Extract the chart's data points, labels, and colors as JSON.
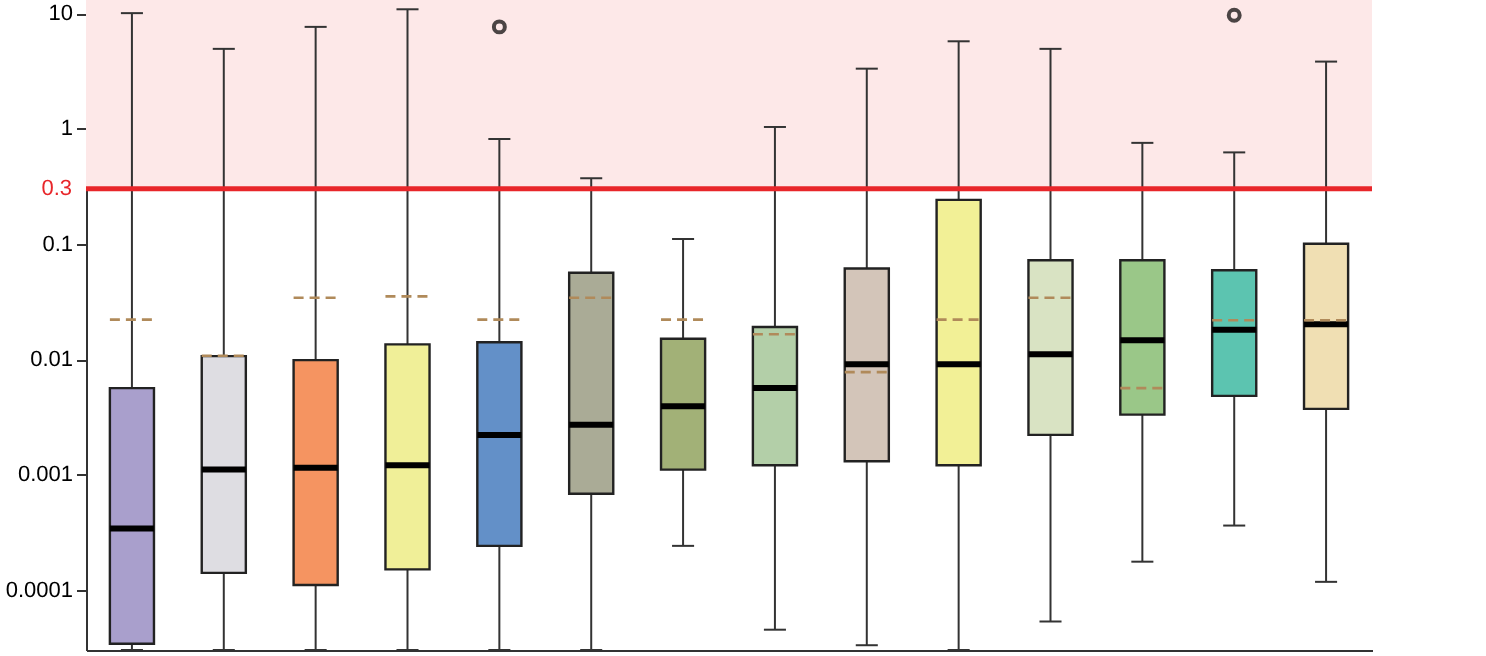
{
  "chart_data": {
    "type": "box",
    "categories": [
      null,
      null,
      null,
      null,
      null,
      null,
      null,
      null,
      null,
      null,
      null,
      null,
      null,
      null
    ],
    "colors": [
      "#a99fcc",
      "#dedde2",
      "#f59461",
      "#f0ef98",
      "#6390c8",
      "#aaab96",
      "#a2b177",
      "#b3cfa8",
      "#d3c5b9",
      "#f2f096",
      "#d9e3c3",
      "#9ac788",
      "#5cc4b0",
      "#f0dfb3"
    ],
    "boxes": [
      {
        "low": 3e-05,
        "q1": 3.4e-05,
        "median": 0.00034,
        "q3": 0.0056,
        "high": 10,
        "mean": 0.022
      },
      {
        "low": 3e-05,
        "q1": 0.00014,
        "median": 0.0011,
        "q3": 0.0106,
        "high": 4.9,
        "mean": 0.0107
      },
      {
        "low": 3e-05,
        "q1": 0.00011,
        "median": 0.00114,
        "q3": 0.0098,
        "high": 7.6,
        "mean": 0.034
      },
      {
        "low": 3e-05,
        "q1": 0.00015,
        "median": 0.0012,
        "q3": 0.0134,
        "high": 10.8,
        "mean": 0.035
      },
      {
        "low": 3e-05,
        "q1": 0.00024,
        "median": 0.0022,
        "q3": 0.014,
        "high": 0.81,
        "mean": 0.022,
        "outliers": [
          7.6
        ]
      },
      {
        "low": 3e-05,
        "q1": 0.00068,
        "median": 0.0027,
        "q3": 0.056,
        "high": 0.37,
        "mean": 0.034
      },
      {
        "low": 0.00024,
        "q1": 0.0011,
        "median": 0.0039,
        "q3": 0.015,
        "high": 0.11,
        "mean": 0.022
      },
      {
        "low": 4.5e-05,
        "q1": 0.0012,
        "median": 0.0056,
        "q3": 0.019,
        "high": 1.03,
        "mean": 0.0164
      },
      {
        "low": 3.3e-05,
        "q1": 0.0013,
        "median": 0.009,
        "q3": 0.061,
        "high": 3.3,
        "mean": 0.0077
      },
      {
        "low": 3e-05,
        "q1": 0.0012,
        "median": 0.009,
        "q3": 0.24,
        "high": 5.7,
        "mean": 0.022
      },
      {
        "low": 5.3e-05,
        "q1": 0.0022,
        "median": 0.011,
        "q3": 0.072,
        "high": 4.9,
        "mean": 0.034
      },
      {
        "low": 0.000175,
        "q1": 0.0033,
        "median": 0.0146,
        "q3": 0.072,
        "high": 0.75,
        "mean": 0.0056
      },
      {
        "low": 0.00036,
        "q1": 0.0048,
        "median": 0.018,
        "q3": 0.059,
        "high": 0.62,
        "mean": 0.0217,
        "outliers": [
          9.6
        ]
      },
      {
        "low": 0.000117,
        "q1": 0.0037,
        "median": 0.02,
        "q3": 0.1,
        "high": 3.8,
        "mean": 0.0217
      }
    ],
    "log": true,
    "ylim": [
      3e-05,
      13
    ],
    "yticks": [
      0.0001,
      0.001,
      0.01,
      0.1,
      1,
      10
    ],
    "ref_lines": [
      {
        "axis": "y",
        "value": 0.3,
        "label": "0.3",
        "color": "#e8262a"
      }
    ],
    "bands": [
      {
        "axis": "y",
        "from": 0.3,
        "to": 13,
        "color": "#fde8e8"
      }
    ],
    "tick_labels": "y",
    "grid": false
  }
}
